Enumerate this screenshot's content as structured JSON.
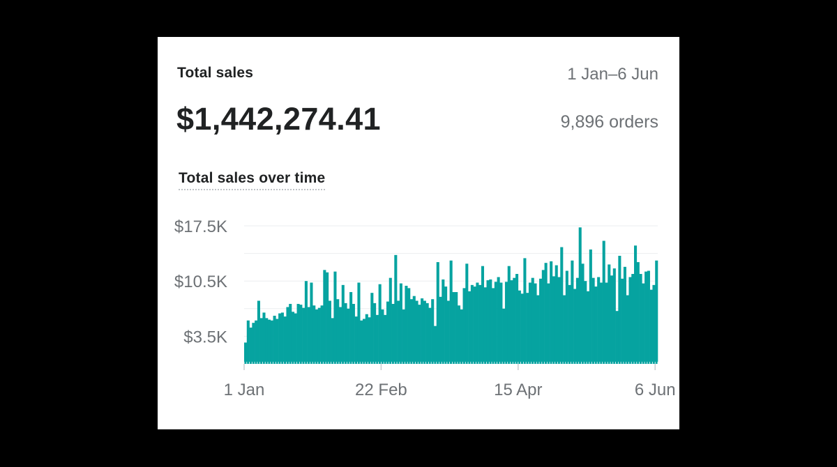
{
  "card": {
    "title": "Total sales",
    "date_range": "1 Jan–6 Jun",
    "total_value": "$1,442,274.41",
    "orders_label": "9,896 orders",
    "chart_title": "Total sales over time"
  },
  "colors": {
    "bar": "#06a3a0",
    "grid": "#ebedef",
    "text_primary": "#202223",
    "text_secondary": "#6d7175"
  },
  "chart_data": {
    "type": "bar",
    "title": "Total sales over time",
    "xlabel": "",
    "ylabel": "",
    "ylim": [
      0,
      17500
    ],
    "y_ticks": [
      {
        "value": 3500,
        "label": "$3.5K"
      },
      {
        "value": 10500,
        "label": "$10.5K"
      },
      {
        "value": 17500,
        "label": "$17.5K"
      }
    ],
    "x_ticks": [
      {
        "index": 0,
        "label": "1 Jan"
      },
      {
        "index": 52,
        "label": "22 Feb"
      },
      {
        "index": 104,
        "label": "15 Apr"
      },
      {
        "index": 156,
        "label": "6 Jun"
      }
    ],
    "grid": true,
    "series": [
      {
        "values": [
          2700,
          5500,
          4600,
          5200,
          5500,
          8000,
          5800,
          6500,
          5800,
          5600,
          5500,
          6100,
          5700,
          6400,
          6500,
          6000,
          7200,
          7600,
          6600,
          6400,
          7600,
          7500,
          7100,
          10500,
          7200,
          10300,
          7400,
          6900,
          7100,
          7400,
          11900,
          11600,
          8000,
          5800,
          11700,
          8200,
          7200,
          10000,
          7700,
          7000,
          9100,
          7600,
          6000,
          10300,
          5500,
          5700,
          6300,
          5900,
          9000,
          7700,
          6200,
          10100,
          6900,
          6200,
          7900,
          10900,
          7600,
          13800,
          8000,
          10200,
          6900,
          9900,
          9600,
          8200,
          8600,
          8000,
          7500,
          8300,
          8000,
          7700,
          7100,
          8200,
          4800,
          12900,
          8500,
          10700,
          9800,
          8000,
          13100,
          9100,
          9100,
          7400,
          6900,
          9600,
          12700,
          9200,
          10000,
          9800,
          10300,
          10000,
          12400,
          9700,
          10600,
          10700,
          9600,
          10400,
          11000,
          10300,
          7000,
          10400,
          12400,
          10600,
          10900,
          11400,
          9300,
          8900,
          13400,
          9000,
          10300,
          10900,
          10200,
          8700,
          10800,
          11900,
          12800,
          10200,
          13000,
          11100,
          12500,
          11000,
          14800,
          8700,
          11800,
          10000,
          13100,
          9500,
          10900,
          17300,
          12700,
          10500,
          9200,
          14500,
          10900,
          9800,
          11000,
          10300,
          15600,
          10300,
          12600,
          11200,
          12100,
          6700,
          13700,
          10800,
          12300,
          8700,
          11000,
          11400,
          15000,
          12900,
          11400,
          10200,
          11700,
          11800,
          9400,
          10000,
          13100
        ]
      }
    ]
  }
}
